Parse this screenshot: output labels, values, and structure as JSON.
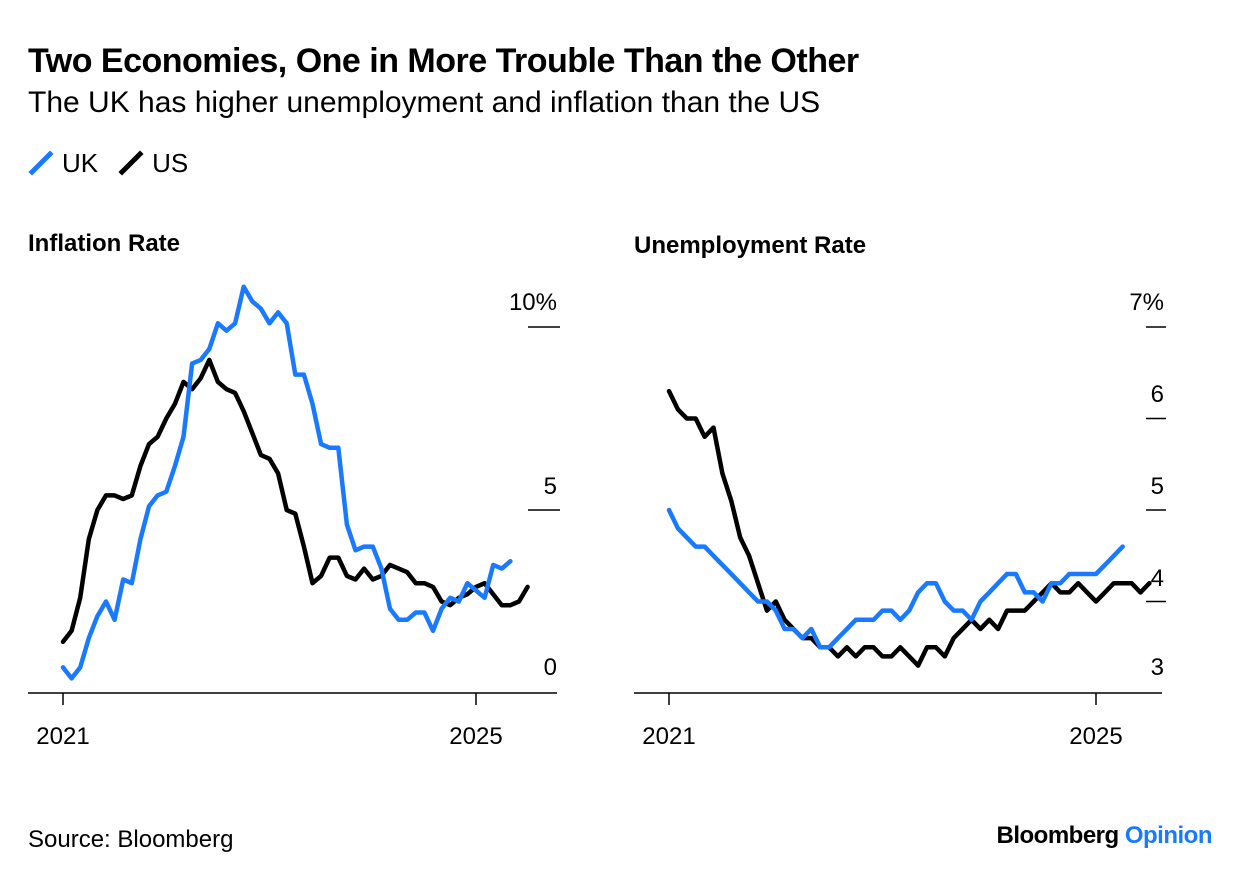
{
  "header": {
    "title": "Two Economies, One in More Trouble Than the Other",
    "subtitle": "The UK has higher unemployment and inflation than the US"
  },
  "legend": [
    {
      "name": "UK",
      "color": "#1a7aff"
    },
    {
      "name": "US",
      "color": "#000000"
    }
  ],
  "footer": {
    "source": "Source: Bloomberg",
    "brand_main": "Bloomberg",
    "brand_accent": "Opinion"
  },
  "chart_data": [
    {
      "type": "line",
      "title": "Inflation Rate",
      "xlabel": "",
      "ylabel": "",
      "x_start": 2021,
      "x_end": 2025,
      "x_ticks": [
        2021,
        2025
      ],
      "x_tick_labels": [
        "2021",
        "2025"
      ],
      "ylim": [
        0,
        10
      ],
      "y_ticks": [
        0,
        5,
        10
      ],
      "y_tick_labels": [
        "0",
        "5",
        "10%"
      ],
      "y_tick_marks": [
        5,
        10
      ],
      "series": [
        {
          "name": "UK",
          "color": "#1a7aff",
          "values": [
            0.7,
            0.4,
            0.7,
            1.5,
            2.1,
            2.5,
            2.0,
            3.1,
            3.0,
            4.2,
            5.1,
            5.4,
            5.5,
            6.2,
            7.0,
            9.0,
            9.1,
            9.4,
            10.1,
            9.9,
            10.1,
            11.1,
            10.7,
            10.5,
            10.1,
            10.4,
            10.1,
            8.7,
            8.7,
            7.9,
            6.8,
            6.7,
            6.7,
            4.6,
            3.9,
            4.0,
            4.0,
            3.4,
            2.3,
            2.0,
            2.0,
            2.2,
            2.2,
            1.7,
            2.3,
            2.6,
            2.5,
            3.0,
            2.8,
            2.6,
            3.5,
            3.4,
            3.6
          ]
        },
        {
          "name": "US",
          "color": "#000000",
          "values": [
            1.4,
            1.7,
            2.6,
            4.2,
            5.0,
            5.4,
            5.4,
            5.3,
            5.4,
            6.2,
            6.8,
            7.0,
            7.5,
            7.9,
            8.5,
            8.3,
            8.6,
            9.1,
            8.5,
            8.3,
            8.2,
            7.7,
            7.1,
            6.5,
            6.4,
            6.0,
            5.0,
            4.9,
            4.0,
            3.0,
            3.2,
            3.7,
            3.7,
            3.2,
            3.1,
            3.4,
            3.1,
            3.2,
            3.5,
            3.4,
            3.3,
            3.0,
            3.0,
            2.9,
            2.5,
            2.4,
            2.6,
            2.7,
            2.9,
            3.0,
            2.7,
            2.4,
            2.4,
            2.5,
            2.9
          ]
        }
      ]
    },
    {
      "type": "line",
      "title": "Unemployment Rate",
      "xlabel": "",
      "ylabel": "",
      "x_start": 2021,
      "x_end": 2025,
      "x_ticks": [
        2021,
        2025
      ],
      "x_tick_labels": [
        "2021",
        "2025"
      ],
      "ylim": [
        3,
        7
      ],
      "y_ticks": [
        3,
        4,
        5,
        6,
        7
      ],
      "y_tick_labels": [
        "3",
        "4",
        "5",
        "6",
        "7%"
      ],
      "y_tick_marks": [
        4,
        5,
        6,
        7
      ],
      "series": [
        {
          "name": "UK",
          "color": "#1a7aff",
          "values": [
            5.0,
            4.8,
            4.7,
            4.6,
            4.6,
            4.5,
            4.4,
            4.3,
            4.2,
            4.1,
            4.0,
            4.0,
            3.9,
            3.7,
            3.7,
            3.6,
            3.7,
            3.5,
            3.5,
            3.6,
            3.7,
            3.8,
            3.8,
            3.8,
            3.9,
            3.9,
            3.8,
            3.9,
            4.1,
            4.2,
            4.2,
            4.0,
            3.9,
            3.9,
            3.8,
            4.0,
            4.1,
            4.2,
            4.3,
            4.3,
            4.1,
            4.1,
            4.0,
            4.2,
            4.2,
            4.3,
            4.3,
            4.3,
            4.3,
            4.4,
            4.5,
            4.6
          ]
        },
        {
          "name": "US",
          "color": "#000000",
          "values": [
            6.3,
            6.1,
            6.0,
            6.0,
            5.8,
            5.9,
            5.4,
            5.1,
            4.7,
            4.5,
            4.2,
            3.9,
            4.0,
            3.8,
            3.7,
            3.6,
            3.6,
            3.5,
            3.5,
            3.4,
            3.5,
            3.4,
            3.5,
            3.5,
            3.4,
            3.4,
            3.5,
            3.4,
            3.3,
            3.5,
            3.5,
            3.4,
            3.6,
            3.7,
            3.8,
            3.7,
            3.8,
            3.7,
            3.9,
            3.9,
            3.9,
            4.0,
            4.1,
            4.2,
            4.1,
            4.1,
            4.2,
            4.1,
            4.0,
            4.1,
            4.2,
            4.2,
            4.2,
            4.1,
            4.2
          ]
        }
      ]
    }
  ]
}
